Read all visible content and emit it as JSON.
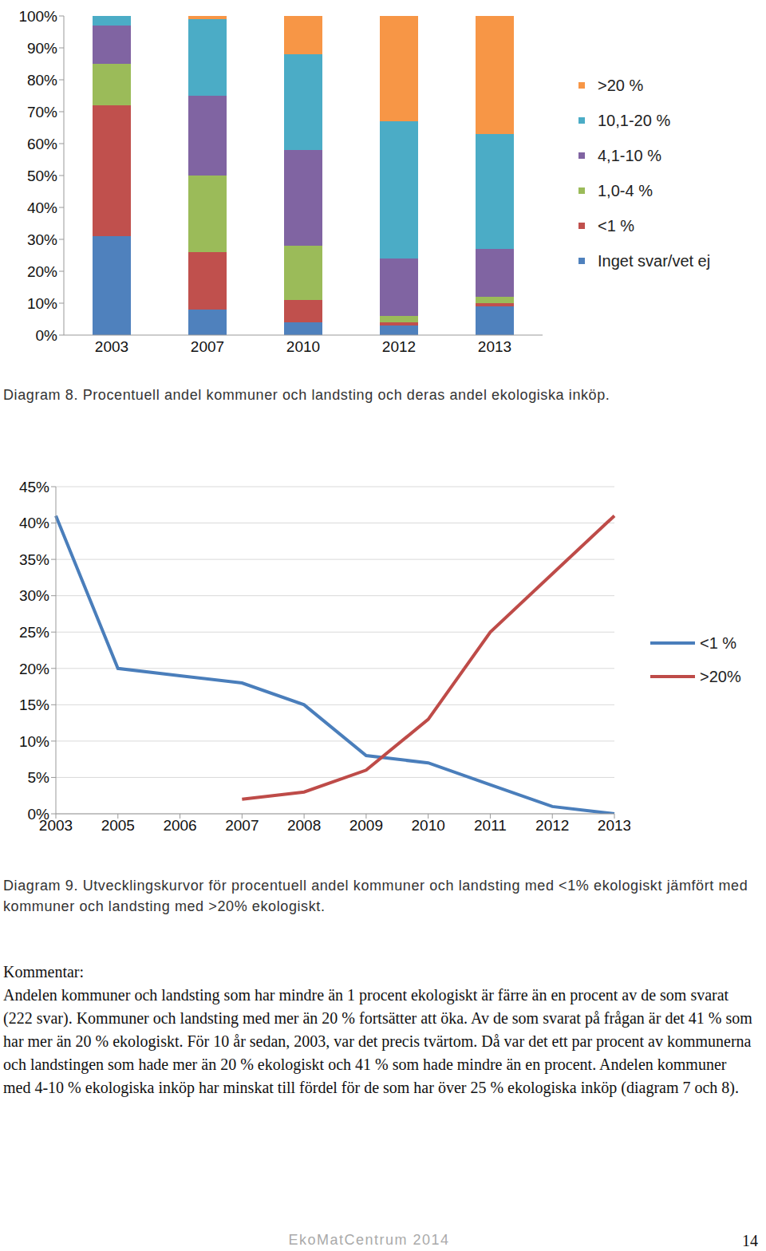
{
  "chart_data": [
    {
      "type": "bar",
      "title": "Diagram 8. Procentuell andel kommuner och landsting och deras andel ekologiska inköp.",
      "stacked": true,
      "legend": "right",
      "grid": false,
      "categories": [
        "2003",
        "2007",
        "2010",
        "2012",
        "2013"
      ],
      "series": [
        {
          "name": "Inget svar/vet ej",
          "color": "#4f81bd",
          "values": [
            31,
            8,
            4,
            3,
            9
          ]
        },
        {
          "name": "<1 %",
          "color": "#c0504d",
          "values": [
            41,
            18,
            7,
            1,
            1
          ]
        },
        {
          "name": "1,0-4 %",
          "color": "#9bbb59",
          "values": [
            13,
            24,
            17,
            2,
            2
          ]
        },
        {
          "name": "4,1-10 %",
          "color": "#8064a2",
          "values": [
            12,
            25,
            30,
            18,
            15
          ]
        },
        {
          "name": "10,1-20 %",
          "color": "#4bacc6",
          "values": [
            3,
            24,
            30,
            43,
            36
          ]
        },
        {
          "name": ">20 %",
          "color": "#f79646",
          "values": [
            0,
            1,
            12,
            33,
            37
          ]
        }
      ],
      "ylim": [
        0,
        100
      ],
      "yticks": [
        {
          "value": 0,
          "label": "0%"
        },
        {
          "value": 10,
          "label": "10%"
        },
        {
          "value": 20,
          "label": "20%"
        },
        {
          "value": 30,
          "label": "30%"
        },
        {
          "value": 40,
          "label": "40%"
        },
        {
          "value": 50,
          "label": "50%"
        },
        {
          "value": 60,
          "label": "60%"
        },
        {
          "value": 70,
          "label": "70%"
        },
        {
          "value": 80,
          "label": "80%"
        },
        {
          "value": 90,
          "label": "90%"
        },
        {
          "value": 100,
          "label": "100%"
        }
      ]
    },
    {
      "type": "line",
      "title": "Diagram 9. Utvecklingskurvor för procentuell andel kommuner och landsting med <1% ekologiskt jämfört med kommuner och landsting med >20% ekologiskt.",
      "legend": "right",
      "grid": true,
      "categories": [
        "2003",
        "2005",
        "2006",
        "2007",
        "2008",
        "2009",
        "2010",
        "2011",
        "2012",
        "2013"
      ],
      "series": [
        {
          "name": "<1 %",
          "color": "#4a7ebb",
          "values": [
            41,
            20,
            19,
            18,
            15,
            8,
            7,
            4,
            1,
            0
          ]
        },
        {
          "name": ">20%",
          "color": "#be4b48",
          "values": [
            null,
            null,
            null,
            2,
            3,
            6,
            13,
            25,
            33,
            41
          ]
        }
      ],
      "ylim": [
        0,
        45
      ],
      "yticks": [
        {
          "value": 0,
          "label": "0%"
        },
        {
          "value": 5,
          "label": "5%"
        },
        {
          "value": 10,
          "label": "10%"
        },
        {
          "value": 15,
          "label": "15%"
        },
        {
          "value": 20,
          "label": "20%"
        },
        {
          "value": 25,
          "label": "25%"
        },
        {
          "value": 30,
          "label": "30%"
        },
        {
          "value": 35,
          "label": "35%"
        },
        {
          "value": 40,
          "label": "40%"
        },
        {
          "value": 45,
          "label": "45%"
        }
      ]
    }
  ],
  "document": {
    "comment_heading": "Kommentar:",
    "comment_text": "Andelen kommuner och landsting som har mindre än 1 procent ekologiskt är färre än en procent av de som svarat (222 svar). Kommuner och landsting med mer än 20 % fortsätter att öka. Av de som svarat på frågan är det 41 % som har mer än 20 % ekologiskt. För 10 år sedan, 2003, var det precis tvärtom. Då var det ett par procent av kommunerna och landstingen som hade mer än 20 % ekologiskt och 41 % som hade mindre än en procent. Andelen kommuner med 4-10 % ekologiska inköp har minskat till fördel för de som har över 25 % ekologiska inköp (diagram 7 och 8).",
    "footer": "EkoMatCentrum 2014",
    "page_number": "14"
  }
}
